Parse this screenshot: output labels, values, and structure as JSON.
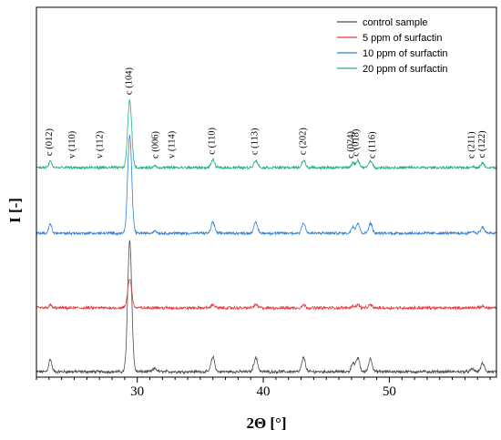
{
  "chart_data": {
    "type": "line",
    "title": "",
    "xlabel": "2Θ [°]",
    "ylabel": "I [-]",
    "xlim": [
      22,
      58.5
    ],
    "xticks": [
      30,
      40,
      50
    ],
    "y_ticks_shown": false,
    "grid": false,
    "legend_position": "top-right",
    "offset_stacked": true,
    "series": [
      {
        "name": "control sample",
        "color": "#4d4d4d",
        "baseline": 0,
        "scale": 1.0
      },
      {
        "name": "5 ppm of surfactin",
        "color": "#e8383d",
        "baseline": 1,
        "scale": 0.22
      },
      {
        "name": "10 ppm of surfactin",
        "color": "#2f7fd6",
        "baseline": 2,
        "scale": 0.8
      },
      {
        "name": "20 ppm of surfactin",
        "color": "#23b07e",
        "baseline": 3,
        "scale": 0.55
      }
    ],
    "peaks": [
      {
        "x": 23.1,
        "height": 0.3,
        "width": 0.12
      },
      {
        "x": 29.4,
        "height": 3.2,
        "width": 0.16
      },
      {
        "x": 31.4,
        "height": 0.08,
        "width": 0.14
      },
      {
        "x": 36.0,
        "height": 0.36,
        "width": 0.14
      },
      {
        "x": 39.4,
        "height": 0.34,
        "width": 0.15
      },
      {
        "x": 43.2,
        "height": 0.34,
        "width": 0.14
      },
      {
        "x": 47.1,
        "height": 0.22,
        "width": 0.12
      },
      {
        "x": 47.5,
        "height": 0.34,
        "width": 0.14
      },
      {
        "x": 48.5,
        "height": 0.32,
        "width": 0.14
      },
      {
        "x": 56.6,
        "height": 0.06,
        "width": 0.14
      },
      {
        "x": 57.4,
        "height": 0.2,
        "width": 0.14
      }
    ],
    "annotations": [
      {
        "text": "c (012)",
        "x": 23.1,
        "series": 3
      },
      {
        "text": "v (110)",
        "x": 24.9,
        "series": 3
      },
      {
        "text": "v (112)",
        "x": 27.1,
        "series": 3
      },
      {
        "text": "c (104)",
        "x": 29.4,
        "series": 3
      },
      {
        "text": "c (006)",
        "x": 31.5,
        "series": 3
      },
      {
        "text": "v (114)",
        "x": 32.8,
        "series": 3
      },
      {
        "text": "c (110)",
        "x": 36.0,
        "series": 3
      },
      {
        "text": "c (113)",
        "x": 39.4,
        "series": 3
      },
      {
        "text": "c (202)",
        "x": 43.2,
        "series": 3
      },
      {
        "text": "c (024)",
        "x": 47.0,
        "series": 3
      },
      {
        "text": "c (018)",
        "x": 47.4,
        "series": 3
      },
      {
        "text": "c (116)",
        "x": 48.7,
        "series": 3
      },
      {
        "text": "c (211)",
        "x": 56.6,
        "series": 3
      },
      {
        "text": "c (122)",
        "x": 57.4,
        "series": 3
      }
    ]
  }
}
